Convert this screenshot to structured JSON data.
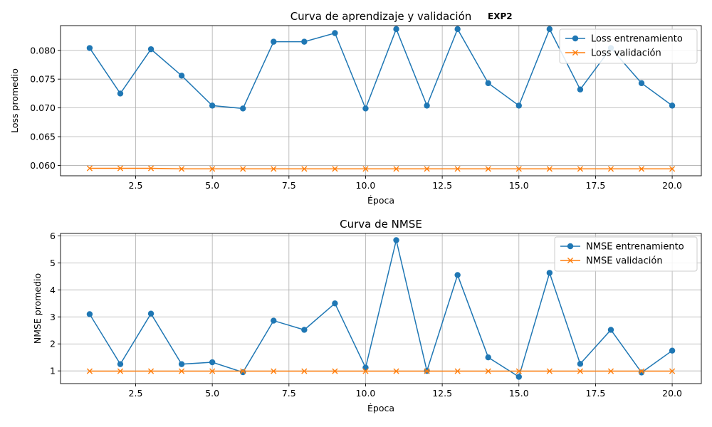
{
  "figure_tag": "EXP2",
  "chart_data": [
    {
      "type": "line",
      "title": "Curva de aprendizaje y validación",
      "xlabel": "Época",
      "ylabel": "Loss promedio",
      "xlim": [
        0.05,
        20.95
      ],
      "ylim": [
        0.0582,
        0.0843
      ],
      "xticks": [
        2.5,
        5.0,
        7.5,
        10.0,
        12.5,
        15.0,
        17.5,
        20.0
      ],
      "xtick_labels": [
        "2.5",
        "5.0",
        "7.5",
        "10.0",
        "12.5",
        "15.0",
        "17.5",
        "20.0"
      ],
      "yticks": [
        0.06,
        0.065,
        0.07,
        0.075,
        0.08
      ],
      "ytick_labels": [
        "0.060",
        "0.065",
        "0.070",
        "0.075",
        "0.080"
      ],
      "grid": true,
      "legend_position": "top-right",
      "x": [
        1,
        2,
        3,
        4,
        5,
        6,
        7,
        8,
        9,
        10,
        11,
        12,
        13,
        14,
        15,
        16,
        17,
        18,
        19,
        20
      ],
      "series": [
        {
          "name": "Loss entrenamiento",
          "color": "#1f77b4",
          "marker": "circle",
          "values": [
            0.0804,
            0.0725,
            0.0802,
            0.0756,
            0.0704,
            0.0699,
            0.0815,
            0.0815,
            0.083,
            0.0699,
            0.0837,
            0.0704,
            0.0837,
            0.0743,
            0.0704,
            0.0837,
            0.0732,
            0.0804,
            0.0743,
            0.0704
          ]
        },
        {
          "name": "Loss validación",
          "color": "#ff7f0e",
          "marker": "x",
          "values": [
            0.0595,
            0.0595,
            0.0595,
            0.0594,
            0.0594,
            0.0594,
            0.0594,
            0.0594,
            0.0594,
            0.0594,
            0.0594,
            0.0594,
            0.0594,
            0.0594,
            0.0594,
            0.0594,
            0.0594,
            0.0594,
            0.0594,
            0.0594
          ]
        }
      ]
    },
    {
      "type": "line",
      "title": "Curva de NMSE",
      "xlabel": "Época",
      "ylabel": "NMSE promedio",
      "xlim": [
        0.05,
        20.95
      ],
      "ylim": [
        0.53,
        6.09
      ],
      "xticks": [
        2.5,
        5.0,
        7.5,
        10.0,
        12.5,
        15.0,
        17.5,
        20.0
      ],
      "xtick_labels": [
        "2.5",
        "5.0",
        "7.5",
        "10.0",
        "12.5",
        "15.0",
        "17.5",
        "20.0"
      ],
      "yticks": [
        1,
        2,
        3,
        4,
        5,
        6
      ],
      "ytick_labels": [
        "1",
        "2",
        "3",
        "4",
        "5",
        "6"
      ],
      "grid": true,
      "legend_position": "top-right",
      "x": [
        1,
        2,
        3,
        4,
        5,
        6,
        7,
        8,
        9,
        10,
        11,
        12,
        13,
        14,
        15,
        16,
        17,
        18,
        19,
        20
      ],
      "series": [
        {
          "name": "NMSE entrenamiento",
          "color": "#1f77b4",
          "marker": "circle",
          "values": [
            3.1,
            1.25,
            3.12,
            1.25,
            1.32,
            0.95,
            2.86,
            2.52,
            3.5,
            1.12,
            5.84,
            1.0,
            4.55,
            1.5,
            0.78,
            4.63,
            1.26,
            2.52,
            0.94,
            1.75
          ]
        },
        {
          "name": "NMSE validación",
          "color": "#ff7f0e",
          "marker": "x",
          "values": [
            0.99,
            0.99,
            0.99,
            0.99,
            0.99,
            0.99,
            0.99,
            0.99,
            0.99,
            0.99,
            0.99,
            0.99,
            0.99,
            0.99,
            0.99,
            0.99,
            0.99,
            0.99,
            0.99,
            0.99
          ]
        }
      ]
    }
  ]
}
